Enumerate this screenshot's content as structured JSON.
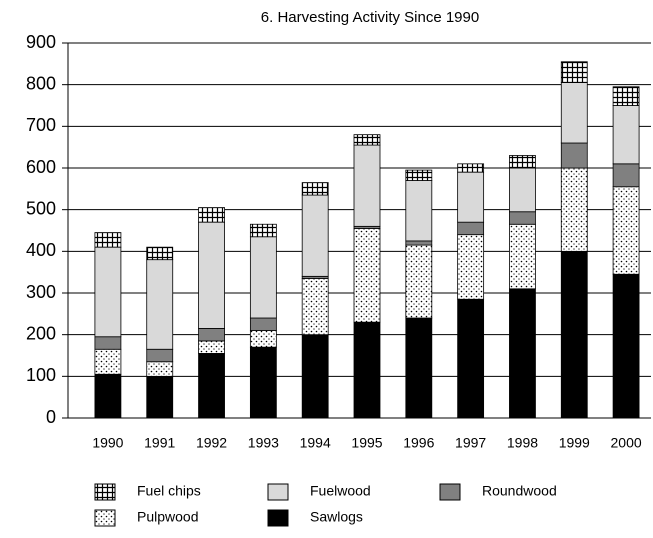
{
  "chart_data": {
    "type": "stacked_bar",
    "title": "6. Harvesting Activity Since 1990",
    "categories": [
      "1990",
      "1991",
      "1992",
      "1993",
      "1994",
      "1995",
      "1996",
      "1997",
      "1998",
      "1999",
      "2000"
    ],
    "series": [
      {
        "name": "Sawlogs",
        "color": "#000000",
        "pattern": "solid",
        "values": [
          105,
          100,
          155,
          170,
          200,
          230,
          240,
          285,
          310,
          400,
          345
        ]
      },
      {
        "name": "Pulpwood",
        "color": "#ffffff",
        "pattern": "dots",
        "values": [
          60,
          35,
          30,
          40,
          135,
          225,
          175,
          155,
          155,
          200,
          210
        ]
      },
      {
        "name": "Roundwood",
        "color": "#808080",
        "pattern": "solid",
        "values": [
          30,
          30,
          30,
          30,
          5,
          5,
          10,
          30,
          30,
          60,
          55
        ]
      },
      {
        "name": "Fuelwood",
        "color": "#d9d9d9",
        "pattern": "solid",
        "values": [
          215,
          215,
          255,
          195,
          195,
          195,
          145,
          120,
          105,
          145,
          140
        ]
      },
      {
        "name": "Fuel chips",
        "color": "#ffffff",
        "pattern": "hatch",
        "values": [
          35,
          30,
          35,
          30,
          30,
          25,
          25,
          20,
          30,
          50,
          45
        ]
      }
    ],
    "ylim": [
      0,
      900
    ],
    "yticks": [
      0,
      100,
      200,
      300,
      400,
      500,
      600,
      700,
      800,
      900
    ],
    "grid": true
  }
}
